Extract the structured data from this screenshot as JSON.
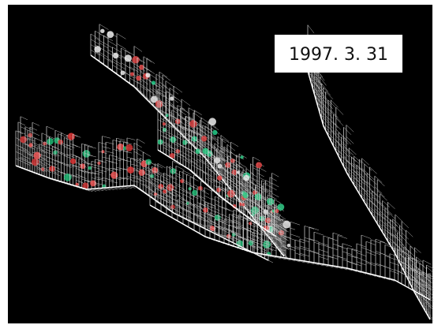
{
  "label": {
    "date": "1997. 3. 31"
  }
}
